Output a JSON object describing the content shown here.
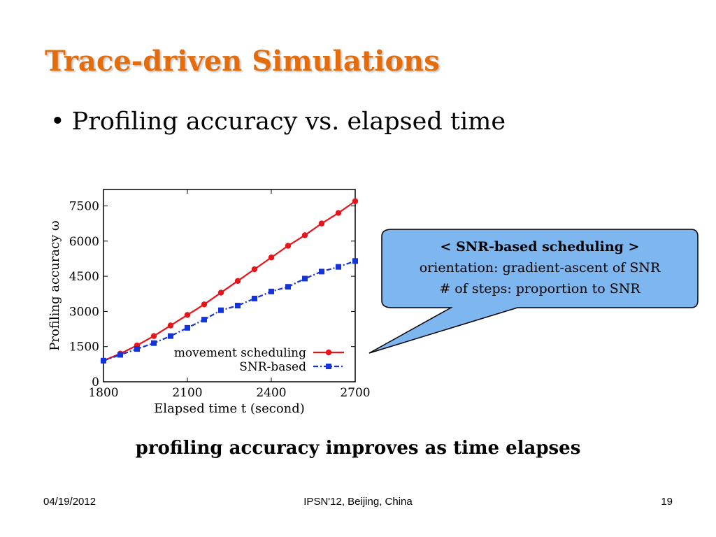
{
  "slide": {
    "title": "Trace-driven Simulations",
    "bullet": "Profiling accuracy vs. elapsed time",
    "bullet_symbol": "•",
    "conclusion": "profiling accuracy improves as time elapses",
    "title_color": "#e46c0a"
  },
  "callout": {
    "heading": "< SNR-based scheduling >",
    "line1": "orientation: gradient-ascent of SNR",
    "line2": "# of steps: proportion to SNR",
    "fill": "#7eb6f0"
  },
  "footer": {
    "date": "04/19/2012",
    "venue": "IPSN'12, Beijing, China",
    "page": "19"
  },
  "chart_data": {
    "type": "line",
    "xlabel": "Elapsed time t (second)",
    "ylabel": "Profiling accuracy ω",
    "xlim": [
      1800,
      2700
    ],
    "ylim": [
      0,
      8200
    ],
    "xticks": [
      "1800",
      "2100",
      "2400",
      "2700"
    ],
    "yticks": [
      "0",
      "1500",
      "3000",
      "4500",
      "6000",
      "7500"
    ],
    "grid": false,
    "legend_position": "bottom-right",
    "x": [
      1800,
      1860,
      1920,
      1980,
      2040,
      2100,
      2160,
      2220,
      2280,
      2340,
      2400,
      2460,
      2520,
      2580,
      2640,
      2700
    ],
    "series": [
      {
        "name": "movement scheduling",
        "color": "#e8141a",
        "marker": "circle",
        "line_style": "solid",
        "values": [
          900,
          1200,
          1550,
          1950,
          2400,
          2850,
          3300,
          3800,
          4300,
          4800,
          5300,
          5800,
          6250,
          6750,
          7200,
          7700
        ]
      },
      {
        "name": "SNR-based",
        "color": "#1433d8",
        "marker": "square",
        "line_style": "dash-dot",
        "values": [
          900,
          1150,
          1400,
          1650,
          1950,
          2300,
          2650,
          3050,
          3250,
          3550,
          3850,
          4050,
          4400,
          4700,
          4900,
          5150
        ]
      }
    ]
  }
}
